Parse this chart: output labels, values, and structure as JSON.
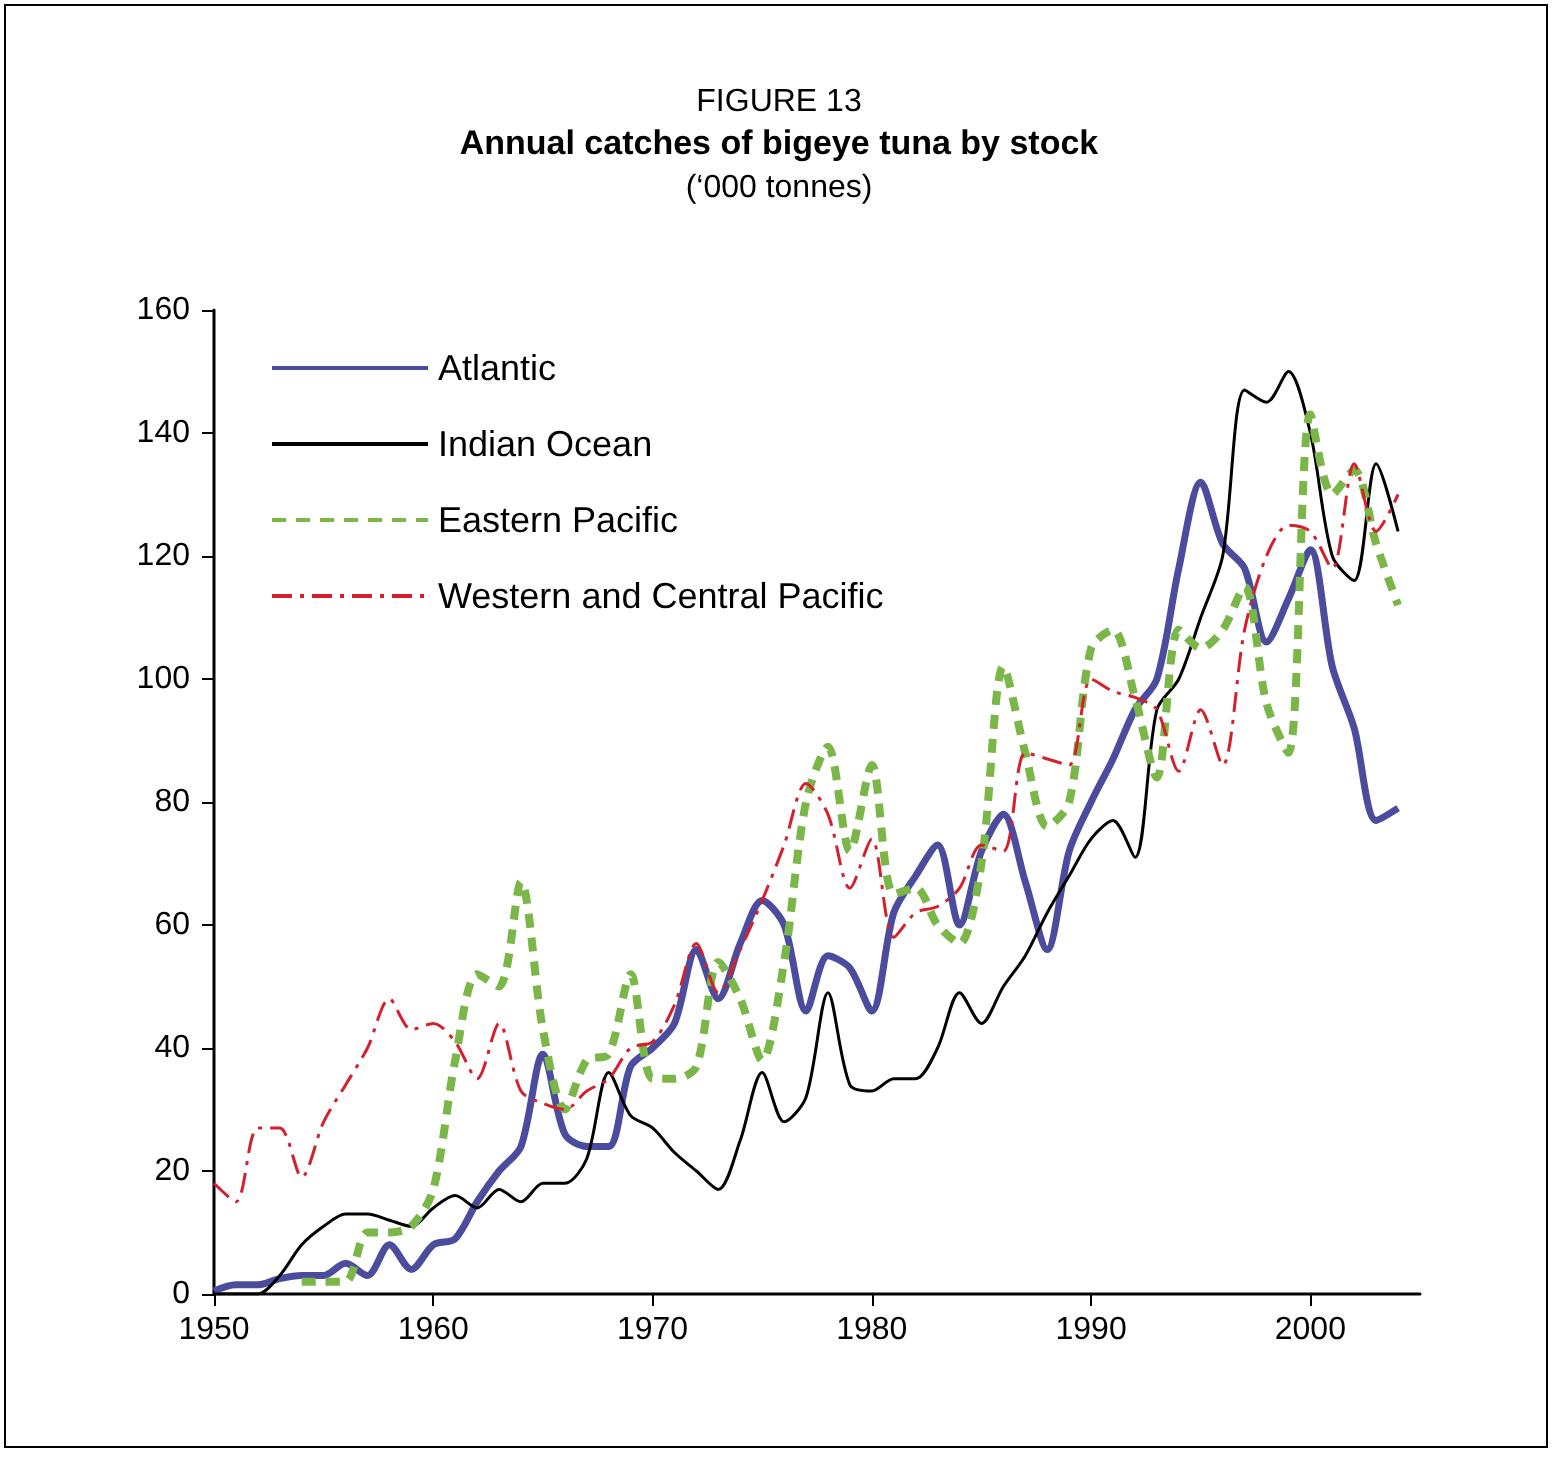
{
  "chart_data": {
    "type": "line",
    "title": "Annual catches of bigeye tuna by stock",
    "subtitle": "(‘000 tonnes)",
    "annotations": [
      "FIGURE 13"
    ],
    "x": [
      1950,
      1951,
      1952,
      1953,
      1954,
      1955,
      1956,
      1957,
      1958,
      1959,
      1960,
      1961,
      1962,
      1963,
      1964,
      1965,
      1966,
      1967,
      1968,
      1969,
      1970,
      1971,
      1972,
      1973,
      1974,
      1975,
      1976,
      1977,
      1978,
      1979,
      1980,
      1981,
      1982,
      1983,
      1984,
      1985,
      1986,
      1987,
      1988,
      1989,
      1990,
      1991,
      1992,
      1993,
      1994,
      1995,
      1996,
      1997,
      1998,
      1999,
      2000,
      2001,
      2002,
      2003,
      2004
    ],
    "series": [
      {
        "name": "Atlantic",
        "color": "#4b4c9e",
        "line_style": "solid",
        "values": [
          0.5,
          1.5,
          1.5,
          2.5,
          3,
          3,
          5,
          3,
          8,
          4,
          8,
          9,
          15,
          20,
          24,
          39,
          26,
          24,
          24,
          37,
          40,
          44,
          56,
          48,
          57,
          64,
          60,
          46,
          55,
          53,
          46,
          62,
          68,
          73,
          60,
          72,
          78,
          67,
          56,
          72,
          80,
          87,
          95,
          100,
          118,
          132,
          122,
          118,
          106,
          113,
          121,
          102,
          92,
          77,
          79
        ]
      },
      {
        "name": "Indian Ocean",
        "color": "#000000",
        "line_style": "solid",
        "values": [
          0,
          0,
          0,
          3,
          8,
          11,
          13,
          13,
          12,
          11,
          14,
          16,
          14,
          17,
          15,
          18,
          18,
          22,
          36,
          29,
          27,
          23,
          20,
          17,
          25,
          36,
          28,
          32,
          49,
          34,
          33,
          35,
          35,
          40,
          49,
          44,
          50,
          55,
          62,
          68,
          74,
          77,
          71,
          95,
          100,
          110,
          120,
          147,
          145,
          150,
          140,
          120,
          116,
          135,
          124
        ]
      },
      {
        "name": "Eastern Pacific",
        "color": "#7ab648",
        "line_style": "dashed",
        "values": [
          null,
          null,
          null,
          null,
          2,
          2,
          2,
          10,
          10,
          11,
          17,
          38,
          52,
          50,
          67,
          43,
          30,
          38,
          39,
          52,
          35,
          35,
          37,
          54,
          48,
          38,
          54,
          80,
          89,
          72,
          86,
          65,
          66,
          60,
          57,
          70,
          102,
          88,
          76,
          80,
          105,
          108,
          97,
          84,
          108,
          105,
          108,
          115,
          96,
          88,
          143,
          130,
          134,
          122,
          112
        ]
      },
      {
        "name": "Western and Central Pacific",
        "color": "#d4202c",
        "line_style": "dashed",
        "values": [
          18,
          15,
          27,
          27,
          19,
          28,
          34,
          40,
          48,
          43,
          44,
          41,
          35,
          44,
          33,
          31,
          30,
          33,
          35,
          40,
          41,
          47,
          57,
          49,
          56,
          64,
          73,
          83,
          78,
          66,
          74,
          58,
          62,
          63,
          66,
          73,
          72,
          88,
          87,
          86,
          100,
          98,
          97,
          95,
          85,
          95,
          86,
          108,
          120,
          125,
          124,
          118,
          135,
          124,
          130
        ]
      }
    ],
    "xlim": [
      1950,
      2005
    ],
    "xticks": [
      1950,
      1960,
      1970,
      1980,
      1990,
      2000
    ],
    "ylim": [
      0,
      160
    ],
    "yticks": [
      0,
      20,
      40,
      60,
      80,
      100,
      120,
      140,
      160
    ],
    "tick_labels": "xy",
    "grid": false,
    "legend": "top left",
    "marker": "none"
  }
}
